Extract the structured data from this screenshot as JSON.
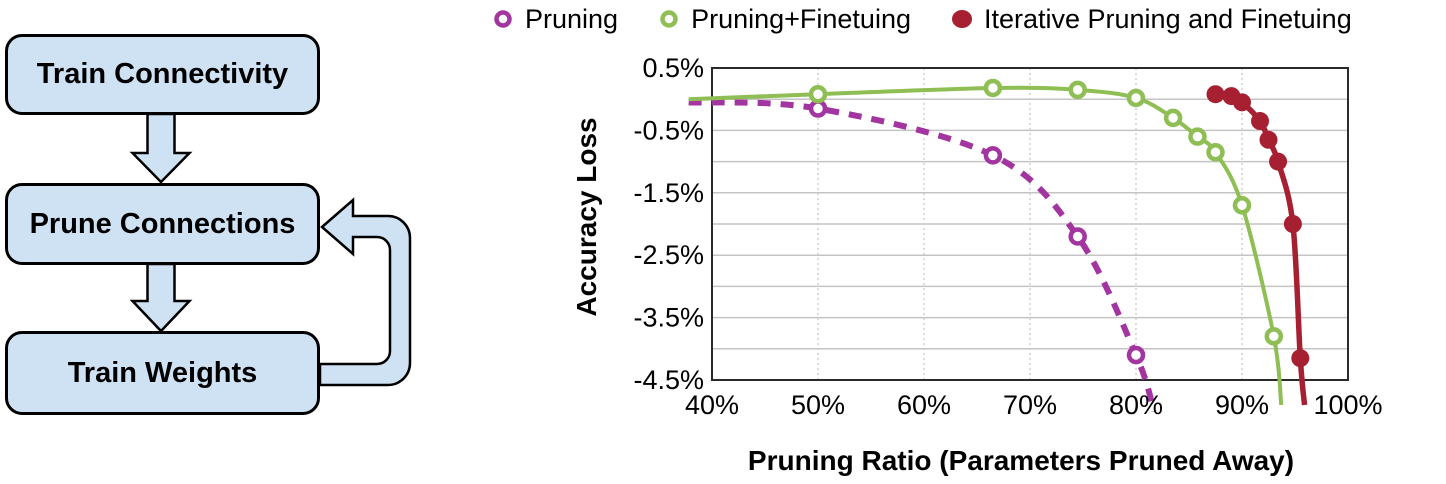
{
  "figure": {
    "flowchart": {
      "boxes": [
        {
          "label": "Train Connectivity"
        },
        {
          "label": "Prune Connections"
        },
        {
          "label": "Train Weights"
        }
      ],
      "box_fill": "#CFE2F4",
      "box_border": "#000000"
    }
  },
  "chart_data": {
    "type": "line",
    "title": "",
    "xlabel": "Pruning Ratio (Parameters Pruned Away)",
    "ylabel": "Accuracy Loss",
    "xlim": [
      40,
      100
    ],
    "ylim": [
      -4.5,
      0.5
    ],
    "grid": "on",
    "gridline_step_y": 0.5,
    "legend_position": "top",
    "x_ticks": [
      {
        "value": 40,
        "label": "40%"
      },
      {
        "value": 50,
        "label": "50%"
      },
      {
        "value": 60,
        "label": "60%"
      },
      {
        "value": 70,
        "label": "70%"
      },
      {
        "value": 80,
        "label": "80%"
      },
      {
        "value": 90,
        "label": "90%"
      },
      {
        "value": 100,
        "label": "100%"
      }
    ],
    "y_ticks": [
      {
        "value": 0.5,
        "label": "0.5%"
      },
      {
        "value": -0.5,
        "label": "-0.5%"
      },
      {
        "value": -1.5,
        "label": "-1.5%"
      },
      {
        "value": -2.5,
        "label": "-2.5%"
      },
      {
        "value": -3.5,
        "label": "-3.5%"
      },
      {
        "value": -4.5,
        "label": "-4.5%"
      }
    ],
    "series": [
      {
        "name": "Pruning",
        "color": "#A235A0",
        "line": "dashed",
        "line_width": 6,
        "marker": "open",
        "points": [
          {
            "x": 37.8,
            "y": -0.05,
            "marker": false
          },
          {
            "x": 50,
            "y": -0.15,
            "marker": true
          },
          {
            "x": 66.5,
            "y": -0.9,
            "marker": true
          },
          {
            "x": 74.5,
            "y": -2.2,
            "marker": true
          },
          {
            "x": 80,
            "y": -4.1,
            "marker": true
          },
          {
            "x": 81.7,
            "y": -5.0,
            "marker": false
          }
        ]
      },
      {
        "name": "Pruning+Finetuing",
        "color": "#8FBE54",
        "line": "solid",
        "line_width": 4,
        "marker": "open",
        "points": [
          {
            "x": 37.8,
            "y": 0.0,
            "marker": false
          },
          {
            "x": 50,
            "y": 0.08,
            "marker": true
          },
          {
            "x": 66.5,
            "y": 0.18,
            "marker": true
          },
          {
            "x": 74.5,
            "y": 0.15,
            "marker": true
          },
          {
            "x": 80,
            "y": 0.02,
            "marker": true
          },
          {
            "x": 83.5,
            "y": -0.3,
            "marker": true
          },
          {
            "x": 85.8,
            "y": -0.6,
            "marker": true
          },
          {
            "x": 87.5,
            "y": -0.85,
            "marker": true
          },
          {
            "x": 90,
            "y": -1.7,
            "marker": true
          },
          {
            "x": 93,
            "y": -3.8,
            "marker": true
          },
          {
            "x": 93.7,
            "y": -4.9,
            "marker": false
          }
        ]
      },
      {
        "name": "Iterative Pruning and Finetuing",
        "color": "#A62031",
        "line": "solid",
        "line_width": 5.5,
        "marker": "filled",
        "points": [
          {
            "x": 87.5,
            "y": 0.08,
            "marker": true
          },
          {
            "x": 89,
            "y": 0.05,
            "marker": true
          },
          {
            "x": 90,
            "y": -0.05,
            "marker": true
          },
          {
            "x": 91.7,
            "y": -0.35,
            "marker": true
          },
          {
            "x": 92.5,
            "y": -0.65,
            "marker": true
          },
          {
            "x": 93.4,
            "y": -1.0,
            "marker": true
          },
          {
            "x": 94.8,
            "y": -2.0,
            "marker": true
          },
          {
            "x": 95.5,
            "y": -4.15,
            "marker": true
          },
          {
            "x": 95.9,
            "y": -4.9,
            "marker": false
          }
        ]
      }
    ]
  }
}
